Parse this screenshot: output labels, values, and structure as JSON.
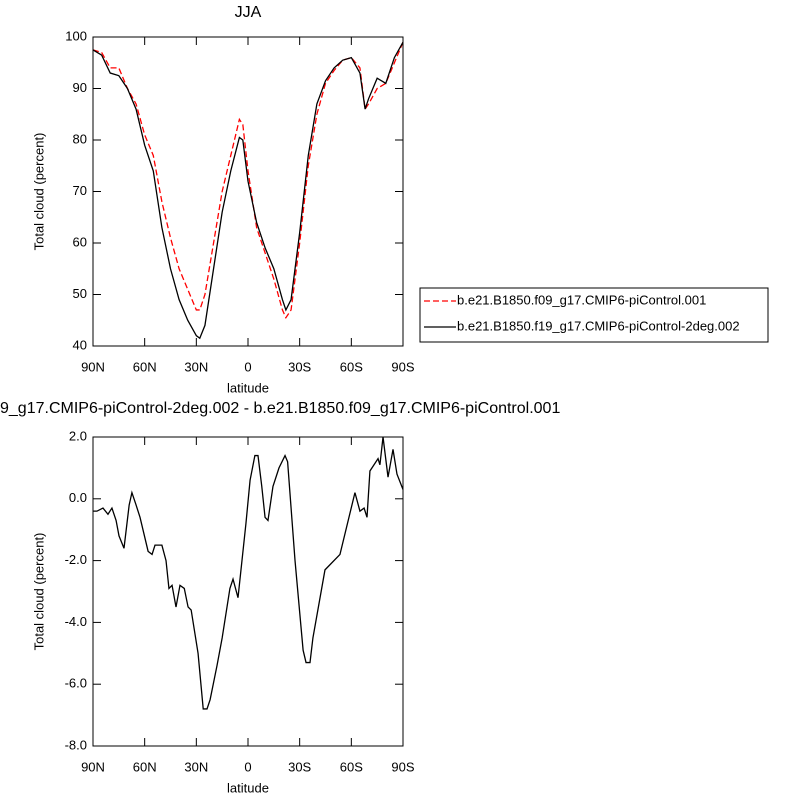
{
  "chart_data": [
    {
      "type": "line",
      "title": "JJA",
      "xlabel": "latitude",
      "ylabel": "Total cloud (percent)",
      "x": [
        90,
        85,
        80,
        75,
        70,
        65,
        60,
        55,
        50,
        45,
        40,
        35,
        30,
        28,
        25,
        20,
        15,
        10,
        5,
        3,
        0,
        -5,
        -10,
        -15,
        -20,
        -22,
        -25,
        -30,
        -35,
        -40,
        -45,
        -50,
        -55,
        -60,
        -65,
        -68,
        -70,
        -75,
        -80,
        -85,
        -90
      ],
      "series": [
        {
          "name": "b.e21.B1850.f09_g17.CMIP6-piControl.001",
          "color": "#ff0000",
          "line_style": "dashed",
          "values": [
            97.5,
            97,
            94,
            94,
            90,
            87,
            81,
            77,
            68,
            61,
            55,
            51,
            47,
            47,
            50,
            60,
            70,
            77,
            84,
            83,
            74,
            63,
            58,
            53,
            47,
            45.5,
            47,
            60,
            75,
            85,
            91,
            93.5,
            95.5,
            96,
            94,
            86,
            87,
            90,
            91,
            95,
            99
          ]
        },
        {
          "name": "b.e21.B1850.f19_g17.CMIP6-piControl-2deg.002",
          "color": "#000000",
          "line_style": "solid",
          "values": [
            97.5,
            96.5,
            93,
            92.5,
            90,
            86,
            79,
            74,
            63,
            55,
            49,
            45,
            42,
            41.5,
            44,
            55,
            66,
            74,
            80.5,
            80,
            72,
            64,
            59,
            55,
            49,
            47,
            49,
            62,
            77,
            87,
            91.5,
            94,
            95.5,
            96,
            93,
            86,
            88,
            92,
            91,
            96,
            99
          ]
        }
      ],
      "xlim": [
        90,
        -90
      ],
      "xticks": [
        {
          "value": 90,
          "label": "90N"
        },
        {
          "value": 60,
          "label": "60N"
        },
        {
          "value": 30,
          "label": "30N"
        },
        0,
        {
          "value": -30,
          "label": "30S"
        },
        {
          "value": -60,
          "label": "60S"
        },
        {
          "value": -90,
          "label": "90S"
        }
      ],
      "ylim": [
        40,
        100
      ],
      "yticks": [
        40,
        50,
        60,
        70,
        80,
        90,
        100
      ],
      "legend": "right"
    },
    {
      "type": "line",
      "title": "9_g17.CMIP6-piControl-2deg.002 - b.e21.B1850.f09_g17.CMIP6-piControl.001",
      "xlabel": "latitude",
      "ylabel": "Total cloud (percent)",
      "x": [
        90,
        87.7,
        84.2,
        81.3,
        79,
        76.6,
        74.9,
        72,
        69,
        67.4,
        65,
        62.7,
        58,
        55.7,
        54,
        50,
        47.6,
        45.9,
        44.1,
        41.8,
        39.5,
        37,
        34.8,
        33,
        29,
        26,
        23.8,
        22,
        18,
        15,
        10.5,
        8.7,
        5.8,
        1.2,
        -1.2,
        -4,
        -5.8,
        -8,
        -9.9,
        -11.6,
        -14.5,
        -18,
        -21.5,
        -23,
        -27.3,
        -32,
        -33.7,
        -36,
        -37.7,
        -44.7,
        -53.4,
        -62.1,
        -65,
        -67.4,
        -69.1,
        -70.8,
        -75.5,
        -76.6,
        -78.4,
        -81.3,
        -84.2,
        -86.5,
        -90
      ],
      "series": [
        {
          "color": "#000000",
          "line_style": "solid",
          "values": [
            -0.4,
            -0.4,
            -0.3,
            -0.5,
            -0.3,
            -0.7,
            -1.2,
            -1.6,
            -0.2,
            0.2,
            -0.2,
            -0.6,
            -1.7,
            -1.8,
            -1.5,
            -1.5,
            -2.0,
            -2.9,
            -2.8,
            -3.5,
            -2.8,
            -2.9,
            -3.5,
            -3.6,
            -5.0,
            -6.8,
            -6.8,
            -6.5,
            -5.4,
            -4.5,
            -2.9,
            -2.6,
            -3.2,
            -0.8,
            0.6,
            1.4,
            1.4,
            0.4,
            -0.6,
            -0.7,
            0.4,
            1.0,
            1.4,
            1.2,
            -2.0,
            -4.9,
            -5.3,
            -5.3,
            -4.5,
            -2.3,
            -1.8,
            0.2,
            -0.4,
            -0.3,
            -0.6,
            0.9,
            1.3,
            1.1,
            2.0,
            0.7,
            1.6,
            0.8,
            0.3
          ]
        }
      ],
      "xlim": [
        90,
        -90
      ],
      "xticks": [
        {
          "value": 90,
          "label": "90N"
        },
        {
          "value": 60,
          "label": "60N"
        },
        {
          "value": 30,
          "label": "30N"
        },
        0,
        {
          "value": -30,
          "label": "30S"
        },
        {
          "value": -60,
          "label": "60S"
        },
        {
          "value": -90,
          "label": "90S"
        }
      ],
      "ylim": [
        -8,
        2
      ],
      "yticks": [
        {
          "value": -8,
          "label": "-8.0"
        },
        {
          "value": -6,
          "label": "-6.0"
        },
        {
          "value": -4,
          "label": "-4.0"
        },
        {
          "value": -2,
          "label": "-2.0"
        },
        {
          "value": 0,
          "label": "0.0"
        },
        {
          "value": 2,
          "label": "2.0"
        }
      ]
    }
  ]
}
